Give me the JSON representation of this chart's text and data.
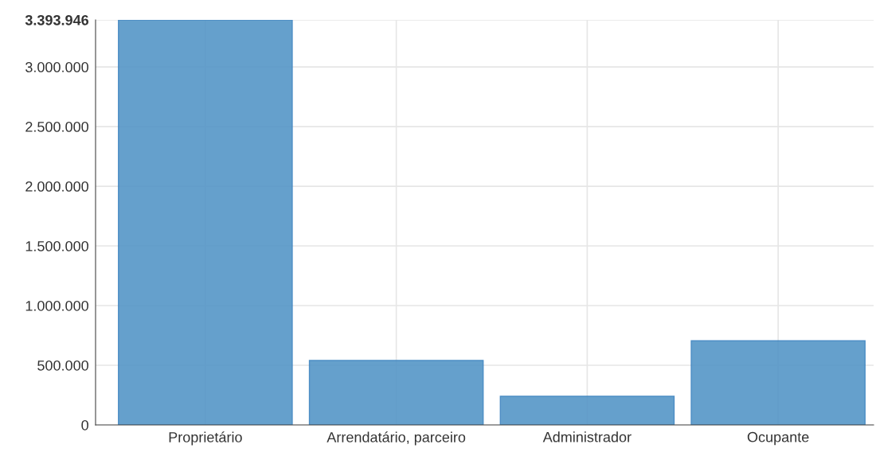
{
  "chart_data": {
    "type": "bar",
    "categories": [
      "Proprietário",
      "Arrendatário, parceiro",
      "Administrador",
      "Ocupante"
    ],
    "values": [
      3393946,
      540000,
      240000,
      705000
    ],
    "color": "#5596c7",
    "ylim": [
      0,
      3393946
    ],
    "yticks": [
      {
        "value": 0,
        "label": "0"
      },
      {
        "value": 500000,
        "label": "500.000"
      },
      {
        "value": 1000000,
        "label": "1.000.000"
      },
      {
        "value": 1500000,
        "label": "1.500.000"
      },
      {
        "value": 2000000,
        "label": "2.000.000"
      },
      {
        "value": 2500000,
        "label": "2.500.000"
      },
      {
        "value": 3000000,
        "label": "3.000.000"
      },
      {
        "value": 3393946,
        "label": "3.393.946"
      }
    ],
    "grid": true
  }
}
